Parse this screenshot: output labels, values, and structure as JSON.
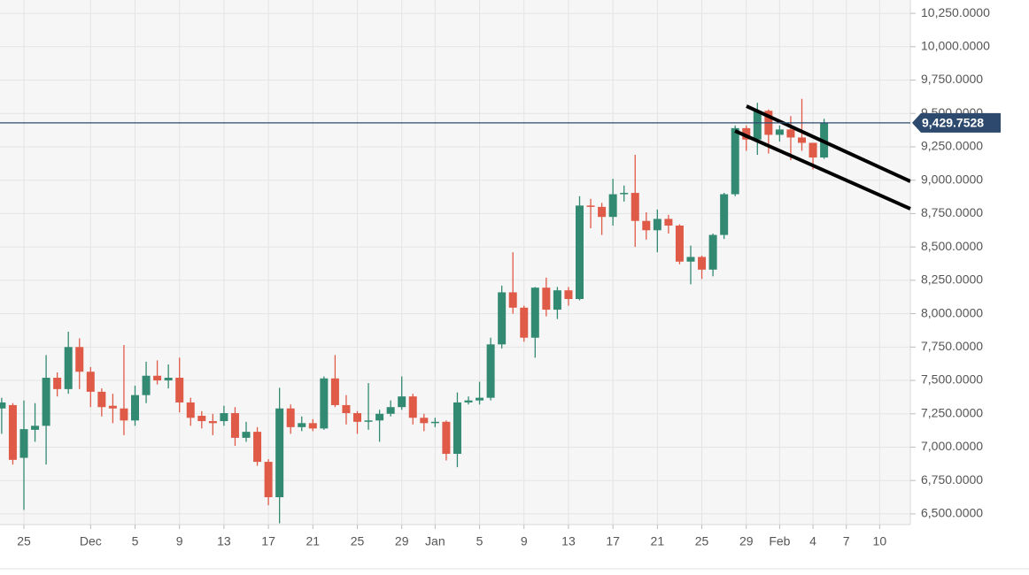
{
  "chart_data": {
    "type": "candlestick",
    "x": [
      "Nov 23",
      "Nov 24",
      "Nov 25",
      "Nov 26",
      "Nov 27",
      "Nov 28",
      "Nov 29",
      "Nov 30",
      "Dec 1",
      "Dec 2",
      "Dec 3",
      "Dec 4",
      "Dec 5",
      "Dec 6",
      "Dec 7",
      "Dec 8",
      "Dec 9",
      "Dec 10",
      "Dec 11",
      "Dec 12",
      "Dec 13",
      "Dec 14",
      "Dec 15",
      "Dec 16",
      "Dec 17",
      "Dec 18",
      "Dec 19",
      "Dec 20",
      "Dec 21",
      "Dec 22",
      "Dec 23",
      "Dec 24",
      "Dec 25",
      "Dec 26",
      "Dec 27",
      "Dec 28",
      "Dec 29",
      "Dec 30",
      "Dec 31",
      "Jan 1",
      "Jan 2",
      "Jan 3",
      "Jan 4",
      "Jan 5",
      "Jan 6",
      "Jan 7",
      "Jan 8",
      "Jan 9",
      "Jan 10",
      "Jan 11",
      "Jan 12",
      "Jan 13",
      "Jan 14",
      "Jan 15",
      "Jan 16",
      "Jan 17",
      "Jan 18",
      "Jan 19",
      "Jan 20",
      "Jan 21",
      "Jan 22",
      "Jan 23",
      "Jan 24",
      "Jan 25",
      "Jan 26",
      "Jan 27",
      "Jan 28",
      "Jan 29",
      "Jan 30",
      "Jan 31",
      "Feb 1",
      "Feb 2",
      "Feb 3",
      "Feb 4",
      "Feb 5"
    ],
    "open": [
      7290,
      7315,
      6920,
      7130,
      7160,
      7520,
      7435,
      7750,
      7565,
      7415,
      7310,
      7290,
      7200,
      7390,
      7535,
      7500,
      7520,
      7335,
      7235,
      7195,
      7195,
      7255,
      7070,
      7115,
      6890,
      6625,
      7290,
      7150,
      7180,
      7140,
      7515,
      7315,
      7255,
      7190,
      7200,
      7250,
      7300,
      7380,
      7220,
      7180,
      7190,
      6950,
      7335,
      7350,
      7370,
      7770,
      8160,
      8045,
      7820,
      8195,
      8030,
      8175,
      8110,
      8810,
      8800,
      8725,
      8895,
      8905,
      8695,
      8625,
      8710,
      8660,
      8390,
      8425,
      8330,
      8590,
      8895,
      9390,
      9305,
      9520,
      9340,
      9380,
      9320,
      9280,
      9170
    ],
    "high": [
      7370,
      7330,
      7350,
      7330,
      7690,
      7560,
      7865,
      7815,
      7600,
      7440,
      7400,
      7765,
      7460,
      7640,
      7650,
      7620,
      7670,
      7370,
      7270,
      7250,
      7310,
      7300,
      7190,
      7150,
      6910,
      7445,
      7320,
      7230,
      7210,
      7530,
      7690,
      7390,
      7270,
      7480,
      7280,
      7350,
      7530,
      7400,
      7250,
      7220,
      7200,
      7410,
      7380,
      7490,
      7820,
      8210,
      8460,
      8060,
      8200,
      8270,
      8200,
      8200,
      8880,
      8860,
      8830,
      9010,
      8960,
      9190,
      8760,
      8780,
      8740,
      8670,
      8510,
      8435,
      8600,
      8905,
      9410,
      9410,
      9580,
      9530,
      9410,
      9480,
      9610,
      9280,
      9460
    ],
    "low": [
      7100,
      6870,
      6530,
      7040,
      6870,
      7380,
      7400,
      7435,
      7300,
      7230,
      7180,
      7090,
      7160,
      7330,
      7470,
      7440,
      7260,
      7160,
      7140,
      7090,
      7160,
      7010,
      7040,
      6860,
      6565,
      6430,
      7100,
      7120,
      7120,
      7130,
      7300,
      7170,
      7100,
      7130,
      7040,
      7230,
      7280,
      7170,
      7120,
      7150,
      6900,
      6850,
      7320,
      7320,
      7350,
      7740,
      8000,
      7790,
      7670,
      7980,
      7960,
      8060,
      8100,
      8640,
      8590,
      8660,
      8840,
      8500,
      8555,
      8460,
      8600,
      8370,
      8220,
      8260,
      8280,
      8560,
      8880,
      9220,
      9190,
      9200,
      9290,
      9150,
      9220,
      9080,
      9160
    ],
    "close": [
      7335,
      6905,
      7135,
      7160,
      7520,
      7435,
      7750,
      7565,
      7415,
      7300,
      7290,
      7200,
      7390,
      7535,
      7500,
      7520,
      7335,
      7220,
      7195,
      7180,
      7255,
      7070,
      7115,
      6890,
      6625,
      7290,
      7150,
      7180,
      7140,
      7515,
      7315,
      7255,
      7190,
      7200,
      7250,
      7300,
      7380,
      7220,
      7180,
      7190,
      6950,
      7335,
      7350,
      7370,
      7770,
      8160,
      8045,
      7820,
      8195,
      8030,
      8175,
      8110,
      8810,
      8800,
      8725,
      8895,
      8905,
      8695,
      8625,
      8710,
      8660,
      8390,
      8425,
      8330,
      8590,
      8895,
      9390,
      9305,
      9520,
      9340,
      9380,
      9320,
      9280,
      9170,
      9430
    ],
    "up_color": "#338a72",
    "down_color": "#e05a48",
    "ylim": [
      6420,
      10350
    ],
    "yticks": [
      {
        "value": 6500,
        "label": "6,500.0000"
      },
      {
        "value": 6750,
        "label": "6,750.0000"
      },
      {
        "value": 7000,
        "label": "7,000.0000"
      },
      {
        "value": 7250,
        "label": "7,250.0000"
      },
      {
        "value": 7500,
        "label": "7,500.0000"
      },
      {
        "value": 7750,
        "label": "7,750.0000"
      },
      {
        "value": 8000,
        "label": "8,000.0000"
      },
      {
        "value": 8250,
        "label": "8,250.0000"
      },
      {
        "value": 8500,
        "label": "8,500.0000"
      },
      {
        "value": 8750,
        "label": "8,750.0000"
      },
      {
        "value": 9000,
        "label": "9,000.0000"
      },
      {
        "value": 9250,
        "label": "9,250.0000"
      },
      {
        "value": 9500,
        "label": "9,500.0000"
      },
      {
        "value": 9750,
        "label": "9,750.0000"
      },
      {
        "value": 10000,
        "label": "10,000.0000"
      },
      {
        "value": 10250,
        "label": "10,250.0000"
      }
    ],
    "xticks": [
      {
        "value": "Nov 25",
        "label": "25"
      },
      {
        "value": "Dec 1",
        "label": "Dec"
      },
      {
        "value": "Dec 5",
        "label": "5"
      },
      {
        "value": "Dec 9",
        "label": "9"
      },
      {
        "value": "Dec 13",
        "label": "13"
      },
      {
        "value": "Dec 17",
        "label": "17"
      },
      {
        "value": "Dec 21",
        "label": "21"
      },
      {
        "value": "Dec 25",
        "label": "25"
      },
      {
        "value": "Dec 29",
        "label": "29"
      },
      {
        "value": "Jan 1",
        "label": "Jan"
      },
      {
        "value": "Jan 5",
        "label": "5"
      },
      {
        "value": "Jan 9",
        "label": "9"
      },
      {
        "value": "Jan 13",
        "label": "13"
      },
      {
        "value": "Jan 17",
        "label": "17"
      },
      {
        "value": "Jan 21",
        "label": "21"
      },
      {
        "value": "Jan 25",
        "label": "25"
      },
      {
        "value": "Jan 29",
        "label": "29"
      },
      {
        "value": "Feb 1",
        "label": "Feb"
      },
      {
        "value": "Feb 4",
        "label": "4"
      },
      {
        "value": "Feb 7",
        "label": "7"
      },
      {
        "value": "Feb 10",
        "label": "10"
      }
    ],
    "last_price": {
      "value": 9429.7528,
      "label": "9,429.7528"
    },
    "grid": true
  }
}
